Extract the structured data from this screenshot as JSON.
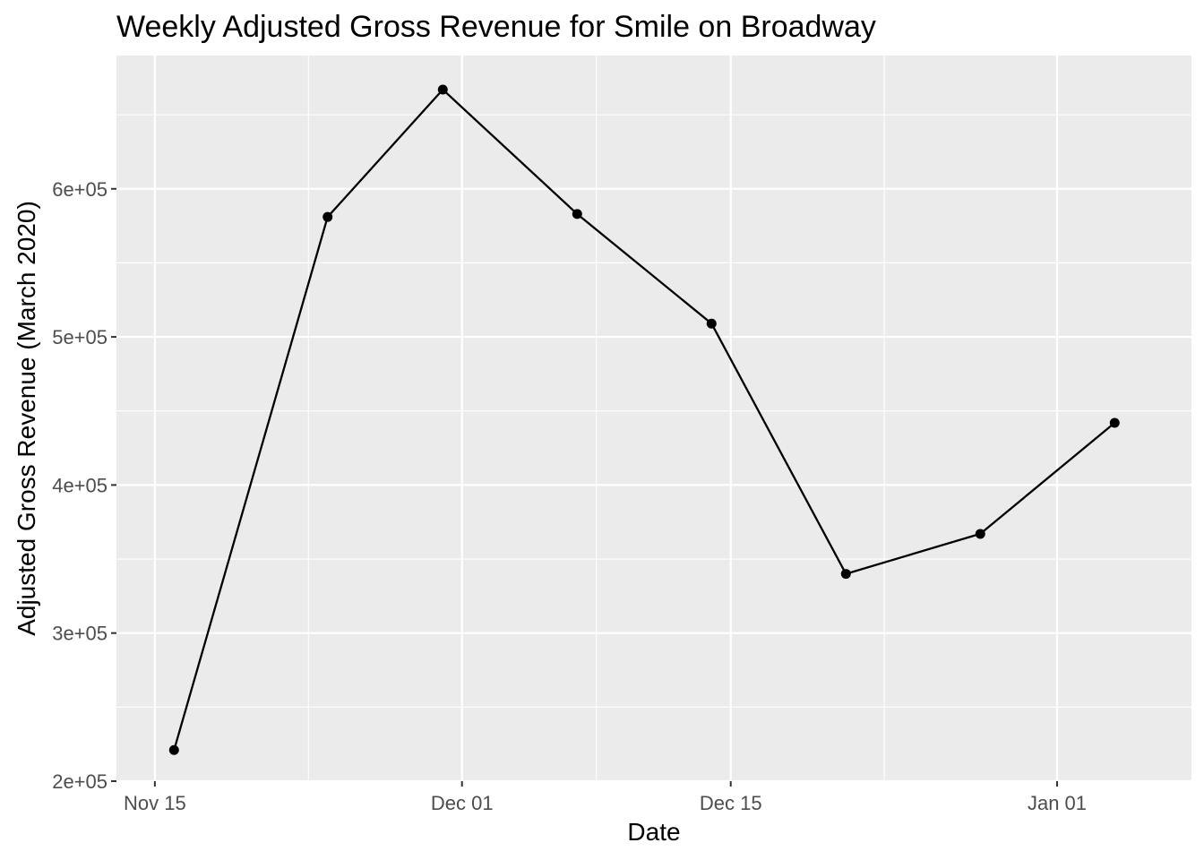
{
  "chart_data": {
    "type": "line",
    "title": "Weekly Adjusted Gross Revenue for Smile on Broadway",
    "xlabel": "Date",
    "ylabel": "Adjusted Gross Revenue (March 2020)",
    "x_axis_type": "date",
    "xlim": [
      "2022-11-13",
      "2023-01-08"
    ],
    "ylim": [
      200000,
      690000
    ],
    "x_ticks": [
      {
        "date": "2022-11-15",
        "label": "Nov 15"
      },
      {
        "date": "2022-12-01",
        "label": "Dec 01"
      },
      {
        "date": "2022-12-15",
        "label": "Dec 15"
      },
      {
        "date": "2023-01-01",
        "label": "Jan 01"
      }
    ],
    "x_minor_ticks": [
      "2022-11-23",
      "2022-12-08",
      "2022-12-23"
    ],
    "y_ticks": [
      {
        "value": 200000,
        "label": "2e+05"
      },
      {
        "value": 300000,
        "label": "3e+05"
      },
      {
        "value": 400000,
        "label": "4e+05"
      },
      {
        "value": 500000,
        "label": "5e+05"
      },
      {
        "value": 600000,
        "label": "6e+05"
      }
    ],
    "y_minor_ticks": [
      250000,
      350000,
      450000,
      550000,
      650000
    ],
    "grid": true,
    "series": [
      {
        "color": "#000000",
        "points": [
          {
            "x": "2022-11-16",
            "y": 221000
          },
          {
            "x": "2022-11-24",
            "y": 581000
          },
          {
            "x": "2022-11-30",
            "y": 667000
          },
          {
            "x": "2022-12-07",
            "y": 583000
          },
          {
            "x": "2022-12-14",
            "y": 509000
          },
          {
            "x": "2022-12-21",
            "y": 340000
          },
          {
            "x": "2022-12-28",
            "y": 367000
          },
          {
            "x": "2023-01-04",
            "y": 442000
          }
        ]
      }
    ],
    "colors": {
      "panel": "#ebebeb",
      "grid": "#ffffff",
      "line": "#000000",
      "tick_text": "#4d4d4d"
    }
  }
}
